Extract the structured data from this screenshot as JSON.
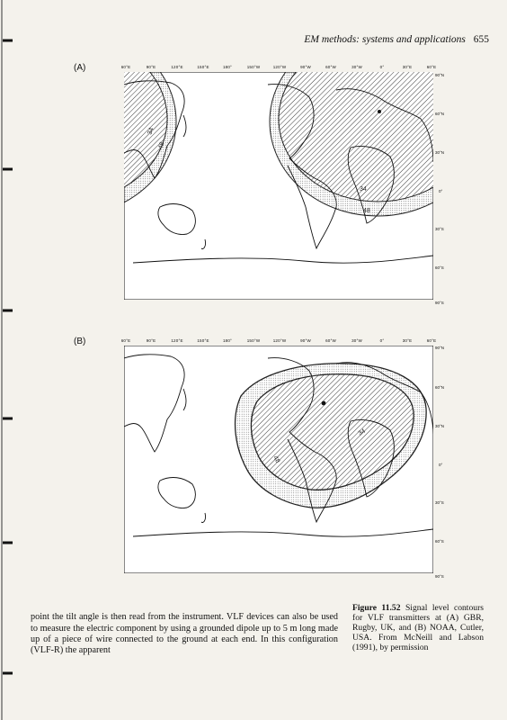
{
  "header": {
    "running_title": "EM methods: systems and applications",
    "page_number": "655"
  },
  "figure": {
    "panels": [
      {
        "label": "(A)",
        "longitude_ticks": [
          "60°E",
          "90°E",
          "120°E",
          "150°E",
          "180°",
          "150°W",
          "120°W",
          "90°W",
          "60°W",
          "30°W",
          "0°",
          "30°E",
          "60°E"
        ],
        "latitude_ticks": [
          "90°N",
          "60°N",
          "30°N",
          "0°",
          "30°S",
          "60°S",
          "90°S"
        ],
        "contour_labels": [
          "34",
          "48",
          "34",
          "48"
        ]
      },
      {
        "label": "(B)",
        "longitude_ticks": [
          "60°E",
          "90°E",
          "120°E",
          "150°E",
          "180°",
          "150°W",
          "120°W",
          "90°W",
          "60°W",
          "30°W",
          "0°",
          "30°E",
          "60°E"
        ],
        "latitude_ticks": [
          "90°N",
          "60°N",
          "30°N",
          "0°",
          "30°S",
          "60°S",
          "90°S"
        ],
        "contour_labels": [
          "34",
          "48"
        ]
      }
    ],
    "caption": {
      "number": "Figure 11.52",
      "text": "Signal level contours for VLF transmitters at (A) GBR, Rugby, UK, and (B) NOAA, Cutler, USA. From McNeill and Labson (1991), by permission"
    }
  },
  "body_text": "point the tilt angle is then read from the instrument. VLF devices can also be used to measure the electric component by using a grounded dipole up to 5 m long made up of a piece of wire connected to the ground at each end. In this configuration (VLF-R) the apparent"
}
